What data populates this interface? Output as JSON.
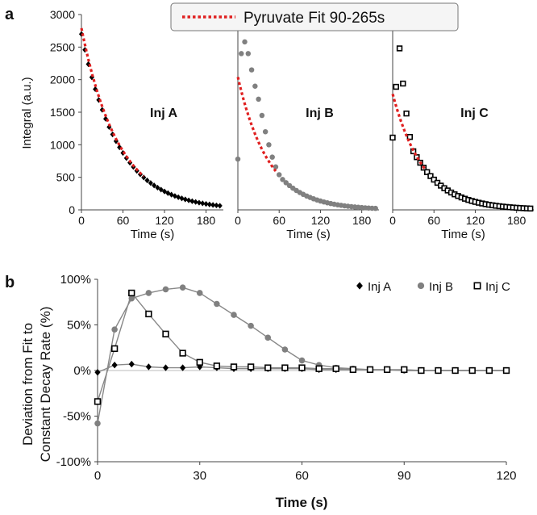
{
  "panel_labels": {
    "a": "a",
    "b": "b"
  },
  "chart_data": [
    {
      "id": "inj-a",
      "type": "scatter",
      "title": "Inj A",
      "xlabel": "Time (s)",
      "ylabel": "Integral (a.u.)",
      "xlim": [
        0,
        205
      ],
      "ylim": [
        0,
        3000
      ],
      "xticks": [
        0,
        60,
        120,
        180
      ],
      "yticks": [
        0,
        500,
        1000,
        1500,
        2000,
        2500,
        3000
      ],
      "legend": {
        "label": "Pyruvate Fit 90-265s",
        "color": "#e02020",
        "position": "top-center"
      },
      "marker": "diamond",
      "marker_color": "#000000",
      "series": [
        {
          "name": "Inj A",
          "a0": 2700,
          "rate": 0.0188,
          "step": 5,
          "tmax": 200
        },
        {
          "name": "Pyruvate Fit 90-265s",
          "a0": 2790,
          "rate": 0.0188,
          "tmin": 0,
          "tmax": 90
        }
      ]
    },
    {
      "id": "inj-b",
      "type": "scatter",
      "title": "Inj B",
      "xlabel": "Time (s)",
      "xlim": [
        0,
        205
      ],
      "ylim": [
        0,
        3000
      ],
      "xticks": [
        0,
        60,
        120,
        180
      ],
      "marker": "circle",
      "marker_color": "#808080",
      "series": [
        {
          "name": "Inj B",
          "early": [
            [
              0,
              780
            ],
            [
              5,
              2400
            ],
            [
              10,
              2580
            ],
            [
              15,
              2400
            ],
            [
              20,
              2150
            ],
            [
              25,
              1900
            ],
            [
              30,
              1700
            ],
            [
              35,
              1450
            ],
            [
              40,
              1200
            ],
            [
              45,
              1000
            ],
            [
              50,
              810
            ],
            [
              55,
              660
            ],
            [
              60,
              540
            ]
          ],
          "a0": 2000,
          "rate": 0.0224,
          "step": 5,
          "tmax": 200
        },
        {
          "name": "Pyruvate Fit 90-265s",
          "a0": 2040,
          "rate": 0.0224,
          "tmin": 0,
          "tmax": 55
        }
      ]
    },
    {
      "id": "inj-c",
      "type": "scatter",
      "title": "Inj C",
      "xlabel": "Time (s)",
      "xlim": [
        0,
        205
      ],
      "ylim": [
        0,
        3000
      ],
      "xticks": [
        0,
        60,
        120,
        180
      ],
      "marker": "open-square",
      "marker_color": "#000000",
      "series": [
        {
          "name": "Inj C",
          "early": [
            [
              0,
              1110
            ],
            [
              5,
              1890
            ],
            [
              10,
              2480
            ],
            [
              15,
              1940
            ],
            [
              20,
              1480
            ],
            [
              25,
              1120
            ],
            [
              30,
              900
            ]
          ],
          "a0": 1760,
          "rate": 0.0222,
          "step": 5,
          "tmax": 200
        },
        {
          "name": "Pyruvate Fit 90-265s",
          "a0": 1780,
          "rate": 0.0222,
          "tmin": 0,
          "tmax": 48
        }
      ]
    },
    {
      "id": "deviation",
      "type": "line",
      "xlabel": "Time (s)",
      "ylabel": [
        "Deviation from Fit to",
        "Constant Decay Rate (%)"
      ],
      "xlim": [
        0,
        120
      ],
      "ylim": [
        -100,
        100
      ],
      "xticks": [
        0,
        30,
        60,
        90,
        120
      ],
      "yticks": [
        -100,
        -50,
        0,
        50,
        100
      ],
      "ytick_labels": [
        "-100%",
        "-50%",
        "0%",
        "50%",
        "100%"
      ],
      "legend_position": "top-right",
      "x": [
        0,
        5,
        10,
        15,
        20,
        25,
        30,
        35,
        40,
        45,
        50,
        55,
        60,
        65,
        70,
        75,
        80,
        85,
        90,
        95,
        100,
        105,
        110,
        115,
        120
      ],
      "series": [
        {
          "name": "Inj A",
          "marker": "diamond",
          "values": [
            -2,
            6,
            7,
            4,
            3,
            3,
            4,
            3,
            2,
            2,
            2,
            2,
            2,
            1,
            1,
            1,
            1,
            1,
            0,
            0,
            0,
            0,
            0,
            0,
            0
          ]
        },
        {
          "name": "Inj B",
          "marker": "circle",
          "values": [
            -58,
            45,
            79,
            85,
            89,
            91,
            85,
            73,
            61,
            49,
            36,
            23,
            11,
            6,
            3,
            2,
            1,
            1,
            0,
            0,
            0,
            0,
            0,
            0,
            0
          ]
        },
        {
          "name": "Inj C",
          "marker": "open-square",
          "values": [
            -34,
            24,
            85,
            62,
            40,
            19,
            9,
            5,
            4,
            4,
            3,
            3,
            3,
            2,
            2,
            1,
            1,
            1,
            1,
            0,
            0,
            0,
            0,
            0,
            0
          ]
        }
      ]
    }
  ]
}
